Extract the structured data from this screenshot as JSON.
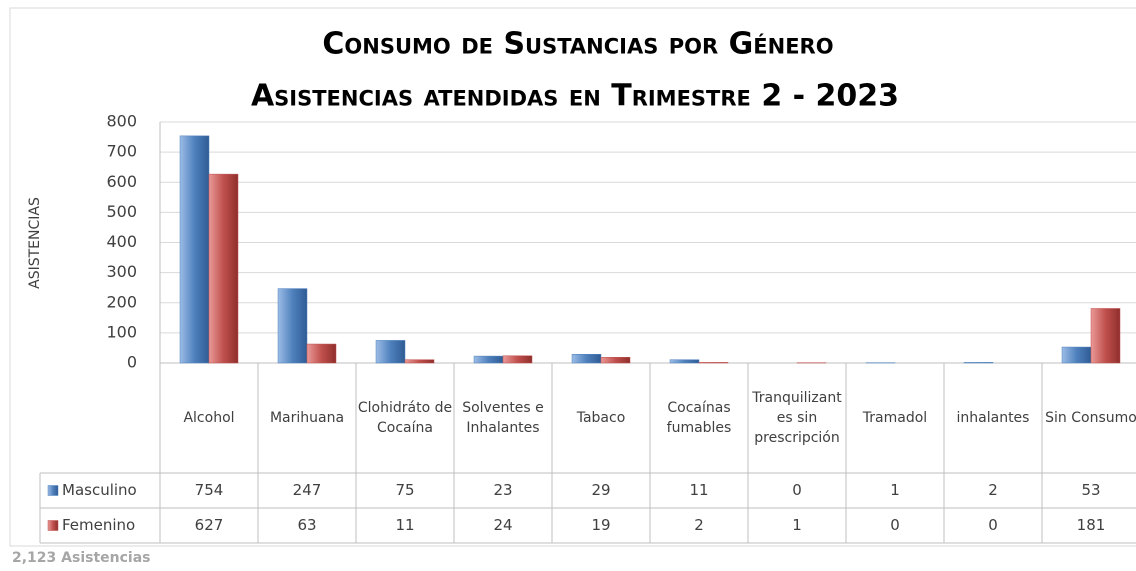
{
  "chart_data": {
    "type": "bar",
    "title": "Consumo de Sustancias por Género",
    "subtitle": "Asistencias atendidas en Trimestre 2  -  2023",
    "y_label": "Asistencias",
    "categories": [
      "Alcohol",
      "Marihuana",
      "Clohidráto de Cocaína",
      "Solventes e Inhalantes",
      "Tabaco",
      "Cocaínas fumables",
      "Tranquilizantes sin prescripción",
      "Tramadol",
      "inhalantes",
      "Sin Consumo"
    ],
    "series": [
      {
        "name": "Masculino",
        "color": "#4f81bd",
        "values": [
          754,
          247,
          75,
          23,
          29,
          11,
          0,
          1,
          2,
          53
        ]
      },
      {
        "name": "Femenino",
        "color": "#c0504d",
        "values": [
          627,
          63,
          11,
          24,
          19,
          2,
          1,
          0,
          0,
          181
        ]
      }
    ],
    "ylim": [
      0,
      800
    ],
    "yticks": [
      0,
      100,
      200,
      300,
      400,
      500,
      600,
      700,
      800
    ],
    "grid": true,
    "footer": "2,123 Asistencias"
  }
}
